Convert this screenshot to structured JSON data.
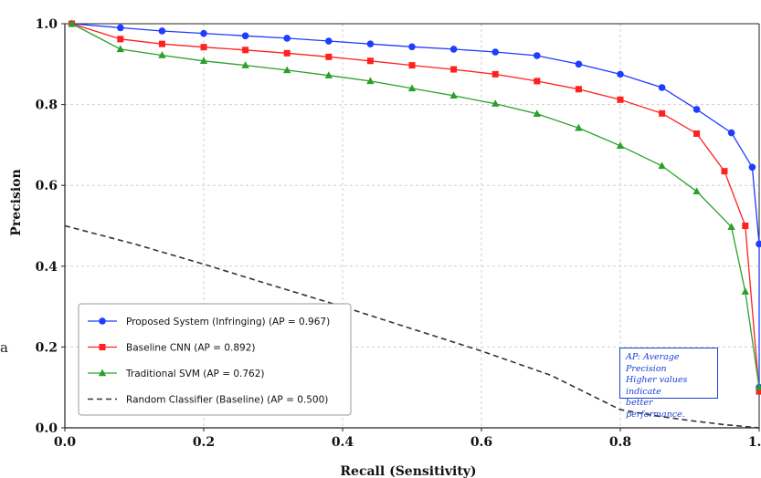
{
  "chart_data": {
    "type": "line",
    "xlabel": "Recall (Sensitivity)",
    "ylabel": "Precision",
    "xlim": [
      0.0,
      1.0
    ],
    "ylim": [
      0.0,
      1.0
    ],
    "xticks": [
      "0.0",
      "0.2",
      "0.4",
      "0.6",
      "0.8",
      "1.0"
    ],
    "yticks": [
      "0.0",
      "0.2",
      "0.4",
      "0.6",
      "0.8",
      "1.0"
    ],
    "grid": true,
    "legend_position": "lower-left",
    "series": [
      {
        "name": "Proposed System (Infringing)  (AP = 0.967)",
        "color": "#1f3cff",
        "marker": "circle",
        "x": [
          0.01,
          0.08,
          0.14,
          0.2,
          0.26,
          0.32,
          0.38,
          0.44,
          0.5,
          0.56,
          0.62,
          0.68,
          0.74,
          0.8,
          0.86,
          0.91,
          0.96,
          0.99,
          1.0,
          1.0
        ],
        "y": [
          1.0,
          0.99,
          0.982,
          0.976,
          0.97,
          0.964,
          0.957,
          0.95,
          0.943,
          0.937,
          0.93,
          0.921,
          0.9,
          0.875,
          0.842,
          0.788,
          0.73,
          0.645,
          0.455,
          0.1
        ]
      },
      {
        "name": "Baseline CNN  (AP = 0.892)",
        "color": "#ff2020",
        "marker": "square",
        "x": [
          0.01,
          0.08,
          0.14,
          0.2,
          0.26,
          0.32,
          0.38,
          0.44,
          0.5,
          0.56,
          0.62,
          0.68,
          0.74,
          0.8,
          0.86,
          0.91,
          0.95,
          0.98,
          1.0
        ],
        "y": [
          1.0,
          0.962,
          0.95,
          0.942,
          0.935,
          0.927,
          0.918,
          0.908,
          0.897,
          0.887,
          0.875,
          0.858,
          0.838,
          0.812,
          0.778,
          0.728,
          0.635,
          0.5,
          0.09
        ]
      },
      {
        "name": "Traditional SVM  (AP = 0.762)",
        "color": "#2aa02a",
        "marker": "triangle",
        "x": [
          0.01,
          0.08,
          0.14,
          0.2,
          0.26,
          0.32,
          0.38,
          0.44,
          0.5,
          0.56,
          0.62,
          0.68,
          0.74,
          0.8,
          0.86,
          0.91,
          0.96,
          0.98,
          1.0
        ],
        "y": [
          1.0,
          0.937,
          0.922,
          0.908,
          0.897,
          0.885,
          0.872,
          0.858,
          0.84,
          0.822,
          0.802,
          0.777,
          0.742,
          0.698,
          0.648,
          0.585,
          0.497,
          0.337,
          0.1
        ]
      },
      {
        "name": "Random Classifier (Baseline)  (AP = 0.500)",
        "color": "#333333",
        "marker": "none",
        "dashed": true,
        "x": [
          0.0,
          0.1,
          0.2,
          0.3,
          0.4,
          0.5,
          0.6,
          0.7,
          0.8,
          0.85,
          0.9,
          0.95,
          1.0
        ],
        "y": [
          0.5,
          0.455,
          0.405,
          0.352,
          0.3,
          0.245,
          0.19,
          0.13,
          0.045,
          0.03,
          0.018,
          0.008,
          0.0
        ]
      }
    ],
    "annotation": [
      "AP: Average Precision",
      "Higher values indicate",
      "better performance."
    ]
  },
  "stray_text": "a"
}
